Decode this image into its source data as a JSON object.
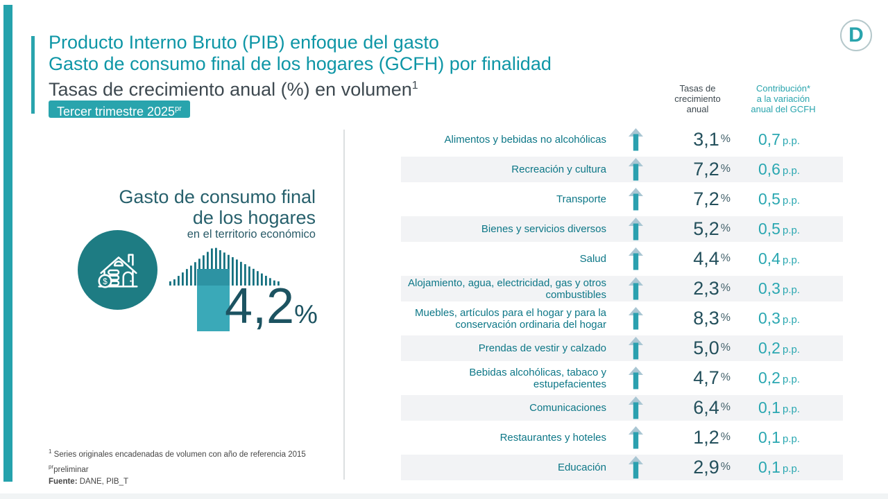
{
  "slide": {
    "logo_letter": "D",
    "header": {
      "title_line1": "Producto Interno Bruto (PIB) enfoque del gasto",
      "title_line2": "Gasto de consumo final de los hogares (GCFH) por finalidad",
      "title_line3": "Tasas de crecimiento anual (%) en volumen",
      "title_line3_sup": "1",
      "badge_text": "Tercer trimestre 2025",
      "badge_sup": "pr"
    },
    "infographic": {
      "heading_line1": "Gasto de consumo final",
      "heading_line2": "de los hogares",
      "subheading": "en el territorio económico",
      "value": "4,2",
      "value_unit": "%",
      "icon": "house-savings-icon"
    },
    "table": {
      "growth_header_lines": [
        "Tasas de",
        "crecimiento",
        "anual"
      ],
      "contribution_header_lines": [
        "Contribución*",
        "a la variación",
        "anual del GCFH"
      ],
      "growth_unit": "%",
      "contribution_unit": "p.p.",
      "arrow_icon": "up-arrow-icon",
      "rows": [
        {
          "label": "Alimentos y bebidas no alcohólicas",
          "growth": "3,1",
          "contribution": "0,7"
        },
        {
          "label": "Recreación y cultura",
          "growth": "7,2",
          "contribution": "0,6"
        },
        {
          "label": "Transporte",
          "growth": "7,2",
          "contribution": "0,5"
        },
        {
          "label": "Bienes y servicios diversos",
          "growth": "5,2",
          "contribution": "0,5"
        },
        {
          "label": "Salud",
          "growth": "4,4",
          "contribution": "0,4"
        },
        {
          "label": "Alojamiento, agua, electricidad, gas y otros combustibles",
          "growth": "2,3",
          "contribution": "0,3"
        },
        {
          "label": "Muebles, artículos para el hogar y para la conservación ordinaria del hogar",
          "growth": "8,3",
          "contribution": "0,3"
        },
        {
          "label": "Prendas de vestir y calzado",
          "growth": "5,0",
          "contribution": "0,2"
        },
        {
          "label": "Bebidas alcohólicas, tabaco y estupefacientes",
          "growth": "4,7",
          "contribution": "0,2"
        },
        {
          "label": "Comunicaciones",
          "growth": "6,4",
          "contribution": "0,1"
        },
        {
          "label": "Restaurantes y hoteles",
          "growth": "1,2",
          "contribution": "0,1"
        },
        {
          "label": "Educación",
          "growth": "2,9",
          "contribution": "0,1"
        }
      ]
    },
    "footnotes": {
      "note1_sup": "1",
      "note1_text": " Series originales encadenadas de volumen con año de referencia 2015",
      "note2_sup": "pr",
      "note2_text": "preliminar",
      "source_label": "Fuente:",
      "source_text": " DANE, PIB_T"
    },
    "colors": {
      "accent_teal": "#29A4AD",
      "title_teal": "#0E96A6",
      "dark_slate": "#3E4950",
      "category_teal": "#0D7787",
      "growth_value_dark_teal": "#24505C",
      "contribution_teal": "#2AA7B1",
      "circle_teal": "#1E7C83",
      "big_value_teal": "#1C5361",
      "row_shade": "#F2F3F5",
      "arrow_head_light": "#A9C6D3",
      "arrow_stem_teal": "#2BA0AF"
    }
  },
  "chart_data": {
    "type": "table",
    "title": "Gasto de consumo final de los hogares (GCFH) por finalidad",
    "subtitle": "Tasas de crecimiento anual (%) en volumen — Tercer trimestre 2025 (pr preliminar)",
    "total": {
      "label": "Gasto de consumo final de los hogares en el territorio económico",
      "growth_pct": 4.2
    },
    "categories": [
      "Alimentos y bebidas no alcohólicas",
      "Recreación y cultura",
      "Transporte",
      "Bienes y servicios diversos",
      "Salud",
      "Alojamiento, agua, electricidad, gas y otros combustibles",
      "Muebles, artículos para el hogar y para la conservación ordinaria del hogar",
      "Prendas de vestir y calzado",
      "Bebidas alcohólicas, tabaco y estupefacientes",
      "Comunicaciones",
      "Restaurantes y hoteles",
      "Educación"
    ],
    "series": [
      {
        "name": "Tasas de crecimiento anual (%)",
        "values": [
          3.1,
          7.2,
          7.2,
          5.2,
          4.4,
          2.3,
          8.3,
          5.0,
          4.7,
          6.4,
          1.2,
          2.9
        ]
      },
      {
        "name": "Contribución a la variación anual del GCFH (p.p.)",
        "values": [
          0.7,
          0.6,
          0.5,
          0.5,
          0.4,
          0.3,
          0.3,
          0.2,
          0.2,
          0.1,
          0.1,
          0.1
        ]
      }
    ],
    "source": "Fuente: DANE, PIB_T"
  }
}
